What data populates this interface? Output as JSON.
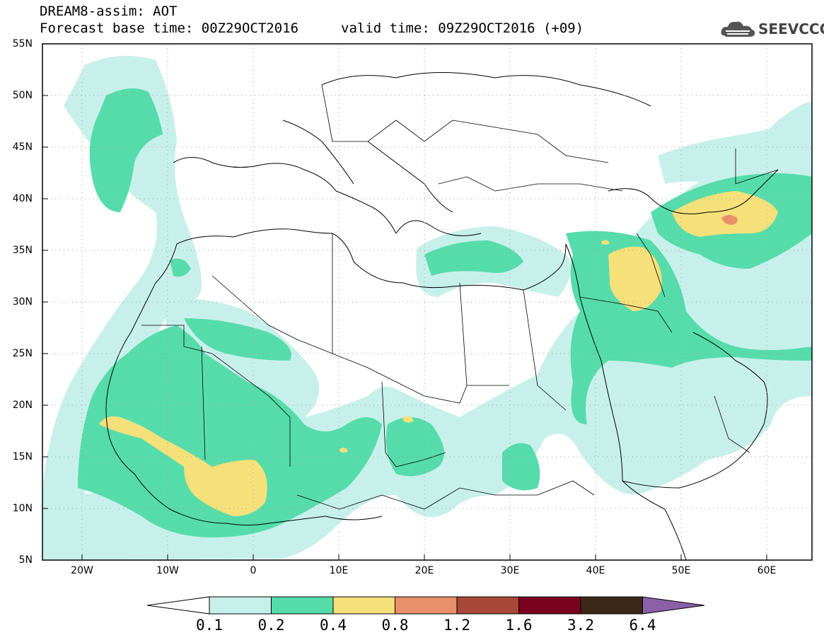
{
  "header": {
    "title": "DREAM8-assim: AOT",
    "forecast_base": "Forecast base time: 00Z29OCT2016",
    "valid_time": "valid time: 09Z29OCT2016 (+09)"
  },
  "logo": {
    "text": "SEEVCCC",
    "icon": "cloud-icon"
  },
  "map": {
    "lat_labels": [
      "55N",
      "50N",
      "45N",
      "40N",
      "35N",
      "30N",
      "25N",
      "20N",
      "15N",
      "10N",
      "5N"
    ],
    "lon_labels": [
      "20W",
      "10W",
      "0",
      "10E",
      "20E",
      "30E",
      "40E",
      "50E",
      "60E"
    ],
    "extent": {
      "lon_min": -25,
      "lon_max": 65,
      "lat_min": 5,
      "lat_max": 55
    },
    "grid": "dotted"
  },
  "colorbar": {
    "labels": [
      "0.1",
      "0.2",
      "0.4",
      "0.8",
      "1.2",
      "1.6",
      "3.2",
      "6.4"
    ],
    "colors": [
      "#ffffff",
      "#c8f0ea",
      "#55dcaa",
      "#f6e07a",
      "#e8906a",
      "#a84838",
      "#7a0020",
      "#3c2818",
      "#8c60a8"
    ]
  }
}
